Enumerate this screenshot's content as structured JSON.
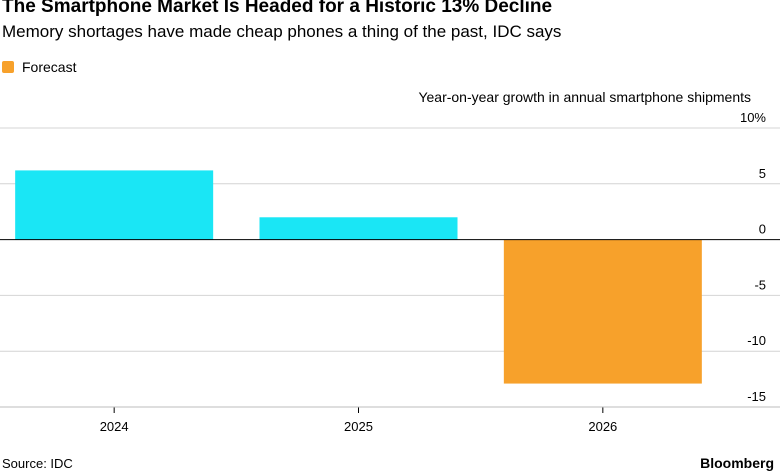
{
  "header": {
    "title": "The Smartphone Market Is Headed for a Historic 13% Decline",
    "subtitle": "Memory shortages have made cheap phones a thing of the past, IDC says"
  },
  "legend": {
    "label": "Forecast",
    "color": "#f7a12b"
  },
  "chart_data": {
    "type": "bar",
    "ylabel": "Year-on-year growth in annual smartphone shipments",
    "categories": [
      "2024",
      "2025",
      "2026"
    ],
    "values": [
      6.2,
      2.0,
      -12.9
    ],
    "forecast": [
      false,
      false,
      true
    ],
    "colors": {
      "actual": "#1ae6f5",
      "forecast": "#f7a12b"
    },
    "ylim": [
      -15,
      10
    ],
    "yticks": [
      10,
      5,
      0,
      -5,
      -10,
      -15
    ],
    "ytick_labels": [
      "10%",
      "5",
      "0",
      "-5",
      "-10",
      "-15"
    ],
    "grid": true
  },
  "footer": {
    "source": "Source: IDC",
    "brand": "Bloomberg"
  }
}
